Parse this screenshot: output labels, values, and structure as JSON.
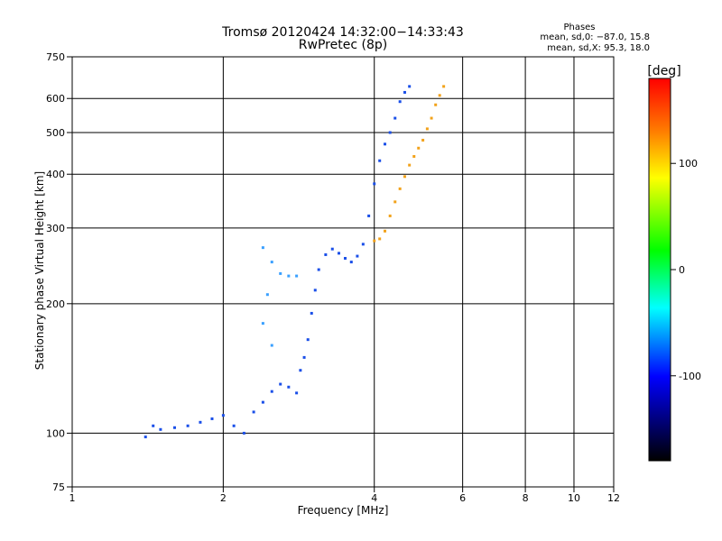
{
  "chart_data": {
    "type": "scatter",
    "title": "Tromsø 20120424 14:32:00−14:33:43",
    "subtitle": "RwPretec (8p)",
    "xlabel": "Frequency [MHz]",
    "ylabel": "Stationary phase Virtual Height [km]",
    "x_scale": "log",
    "y_scale": "log",
    "xlim": [
      1,
      12
    ],
    "ylim": [
      75,
      750
    ],
    "x_ticks": [
      1,
      2,
      4,
      6,
      8,
      10,
      12
    ],
    "y_ticks": [
      75,
      100,
      200,
      300,
      400,
      500,
      600,
      750
    ],
    "grid": true,
    "stats": {
      "heading": "Phases",
      "line0": "mean, sd,0: −87.0, 15.8",
      "lineX": "mean, sd,X:  95.3, 18.0"
    },
    "colorbar": {
      "label": "[deg]",
      "range": [
        -180,
        180
      ],
      "ticks": [
        100,
        0,
        -100
      ],
      "colormap": "rainbow"
    },
    "series": [
      {
        "mode": "O",
        "color": "#1a4fe8",
        "points": [
          [
            1.4,
            98
          ],
          [
            1.45,
            104
          ],
          [
            1.5,
            102
          ],
          [
            1.6,
            103
          ],
          [
            1.7,
            104
          ],
          [
            1.8,
            106
          ],
          [
            1.9,
            108
          ],
          [
            2.0,
            110
          ],
          [
            2.1,
            104
          ],
          [
            2.2,
            100
          ],
          [
            2.3,
            112
          ],
          [
            2.4,
            118
          ],
          [
            2.5,
            125
          ],
          [
            2.6,
            130
          ],
          [
            2.7,
            128
          ],
          [
            2.8,
            124
          ],
          [
            2.85,
            140
          ],
          [
            2.9,
            150
          ],
          [
            2.95,
            165
          ],
          [
            3.0,
            190
          ],
          [
            3.05,
            215
          ],
          [
            3.1,
            240
          ],
          [
            3.2,
            260
          ],
          [
            3.3,
            268
          ],
          [
            3.4,
            262
          ],
          [
            3.5,
            255
          ],
          [
            3.6,
            250
          ],
          [
            3.7,
            258
          ],
          [
            3.8,
            275
          ],
          [
            3.9,
            320
          ],
          [
            4.0,
            380
          ],
          [
            4.1,
            430
          ],
          [
            4.2,
            470
          ],
          [
            4.3,
            500
          ],
          [
            4.4,
            540
          ],
          [
            4.5,
            590
          ],
          [
            4.6,
            620
          ],
          [
            4.7,
            640
          ]
        ]
      },
      {
        "mode": "X",
        "color": "#f2a21a",
        "points": [
          [
            4.0,
            280
          ],
          [
            4.1,
            283
          ],
          [
            4.2,
            295
          ],
          [
            4.3,
            320
          ],
          [
            4.4,
            345
          ],
          [
            4.5,
            370
          ],
          [
            4.6,
            395
          ],
          [
            4.7,
            420
          ],
          [
            4.8,
            440
          ],
          [
            4.9,
            460
          ],
          [
            5.0,
            480
          ],
          [
            5.1,
            510
          ],
          [
            5.2,
            540
          ],
          [
            5.3,
            580
          ],
          [
            5.4,
            610
          ],
          [
            5.5,
            640
          ]
        ]
      },
      {
        "mode": "low",
        "color": "#3aa0ff",
        "points": [
          [
            2.4,
            270
          ],
          [
            2.5,
            250
          ],
          [
            2.6,
            235
          ],
          [
            2.7,
            232
          ],
          [
            2.8,
            232
          ],
          [
            2.45,
            210
          ],
          [
            2.4,
            180
          ],
          [
            2.5,
            160
          ]
        ]
      }
    ]
  }
}
